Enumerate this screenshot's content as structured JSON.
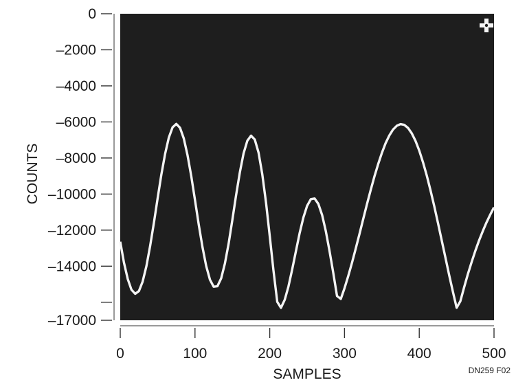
{
  "chart_data": {
    "type": "line",
    "title": "",
    "xlabel": "SAMPLES",
    "ylabel": "COUNTS",
    "xlim": [
      0,
      500
    ],
    "ylim": [
      -17000,
      0
    ],
    "x_ticks": [
      0,
      100,
      200,
      300,
      400,
      500
    ],
    "x_tick_labels": [
      "0",
      "100",
      "200",
      "300",
      "400",
      "500"
    ],
    "y_ticks": [
      0,
      -2000,
      -4000,
      -6000,
      -8000,
      -10000,
      -12000,
      -14000,
      -16000,
      -17000
    ],
    "y_tick_labels": [
      "0",
      "–2000",
      "–4000",
      "–6000",
      "–8000",
      "–10000",
      "–12000",
      "–14000",
      "",
      "–17000"
    ],
    "grid": false,
    "plot_background": "#1e1e1e",
    "series": [
      {
        "color": "#f4f4f4",
        "x": [
          0,
          5,
          10,
          15,
          20,
          25,
          30,
          35,
          40,
          45,
          50,
          55,
          60,
          65,
          70,
          75,
          80,
          85,
          90,
          95,
          100,
          105,
          110,
          115,
          120,
          125,
          130,
          135,
          140,
          145,
          150,
          155,
          160,
          165,
          170,
          175,
          180,
          185,
          190,
          195,
          200,
          205,
          210,
          215,
          220,
          225,
          230,
          235,
          240,
          245,
          250,
          255,
          260,
          265,
          270,
          275,
          280,
          285,
          290,
          295,
          300,
          305,
          310,
          315,
          320,
          325,
          330,
          335,
          340,
          345,
          350,
          355,
          360,
          365,
          370,
          375,
          380,
          385,
          390,
          395,
          400,
          405,
          410,
          415,
          420,
          425,
          430,
          435,
          440,
          445,
          450,
          455,
          460,
          465,
          470,
          475,
          480,
          485,
          490,
          495,
          500
        ],
        "y": [
          -12644,
          -13797,
          -14708,
          -15304,
          -15534,
          -15380,
          -14854,
          -13997,
          -12879,
          -11591,
          -10237,
          -8927,
          -7771,
          -6868,
          -6298,
          -6111,
          -6324,
          -6918,
          -7842,
          -9014,
          -10334,
          -11684,
          -12940,
          -13994,
          -14752,
          -15140,
          -15115,
          -14674,
          -13856,
          -12738,
          -11429,
          -10067,
          -8794,
          -7747,
          -7040,
          -6763,
          -6976,
          -7698,
          -8896,
          -10483,
          -12330,
          -14238,
          -15974,
          -16309,
          -15866,
          -15127,
          -14191,
          -13167,
          -12167,
          -11297,
          -10648,
          -10283,
          -10245,
          -10544,
          -11162,
          -12055,
          -13157,
          -14387,
          -15653,
          -15813,
          -15222,
          -14548,
          -13811,
          -13027,
          -12214,
          -11390,
          -10574,
          -9781,
          -9030,
          -8337,
          -7717,
          -7183,
          -6746,
          -6419,
          -6209,
          -6122,
          -6164,
          -6335,
          -6633,
          -7054,
          -7590,
          -8232,
          -8969,
          -9786,
          -10667,
          -11597,
          -12556,
          -13526,
          -14488,
          -15422,
          -16308,
          -15945,
          -15171,
          -14448,
          -13775,
          -13152,
          -12578,
          -12051,
          -11571,
          -11134,
          -10739
        ]
      }
    ],
    "annotations": [
      "DN259 F02"
    ]
  }
}
